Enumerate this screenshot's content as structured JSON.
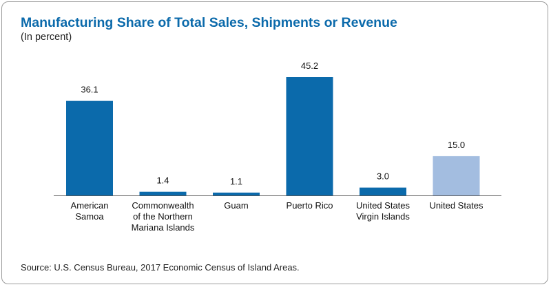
{
  "chart_data": {
    "type": "bar",
    "title": "Manufacturing Share of Total Sales, Shipments or Revenue",
    "subtitle": "(In percent)",
    "categories": [
      "American\nSamoa",
      "Commonwealth\nof the Northern\nMariana Islands",
      "Guam",
      "Puerto Rico",
      "United States\nVirgin Islands",
      "United States"
    ],
    "values": [
      36.1,
      1.4,
      1.1,
      45.2,
      3.0,
      15.0
    ],
    "value_labels": [
      "36.1",
      "1.4",
      "1.1",
      "45.2",
      "3.0",
      "15.0"
    ],
    "bar_colors": [
      "#0b6aab",
      "#0b6aab",
      "#0b6aab",
      "#0b6aab",
      "#0b6aab",
      "#a3bde0"
    ],
    "xlabel": "",
    "ylabel": "",
    "ylim": [
      0,
      45.2
    ],
    "grid": false,
    "source": "Source: U.S. Census Bureau, 2017 Economic Census of Island Areas."
  }
}
